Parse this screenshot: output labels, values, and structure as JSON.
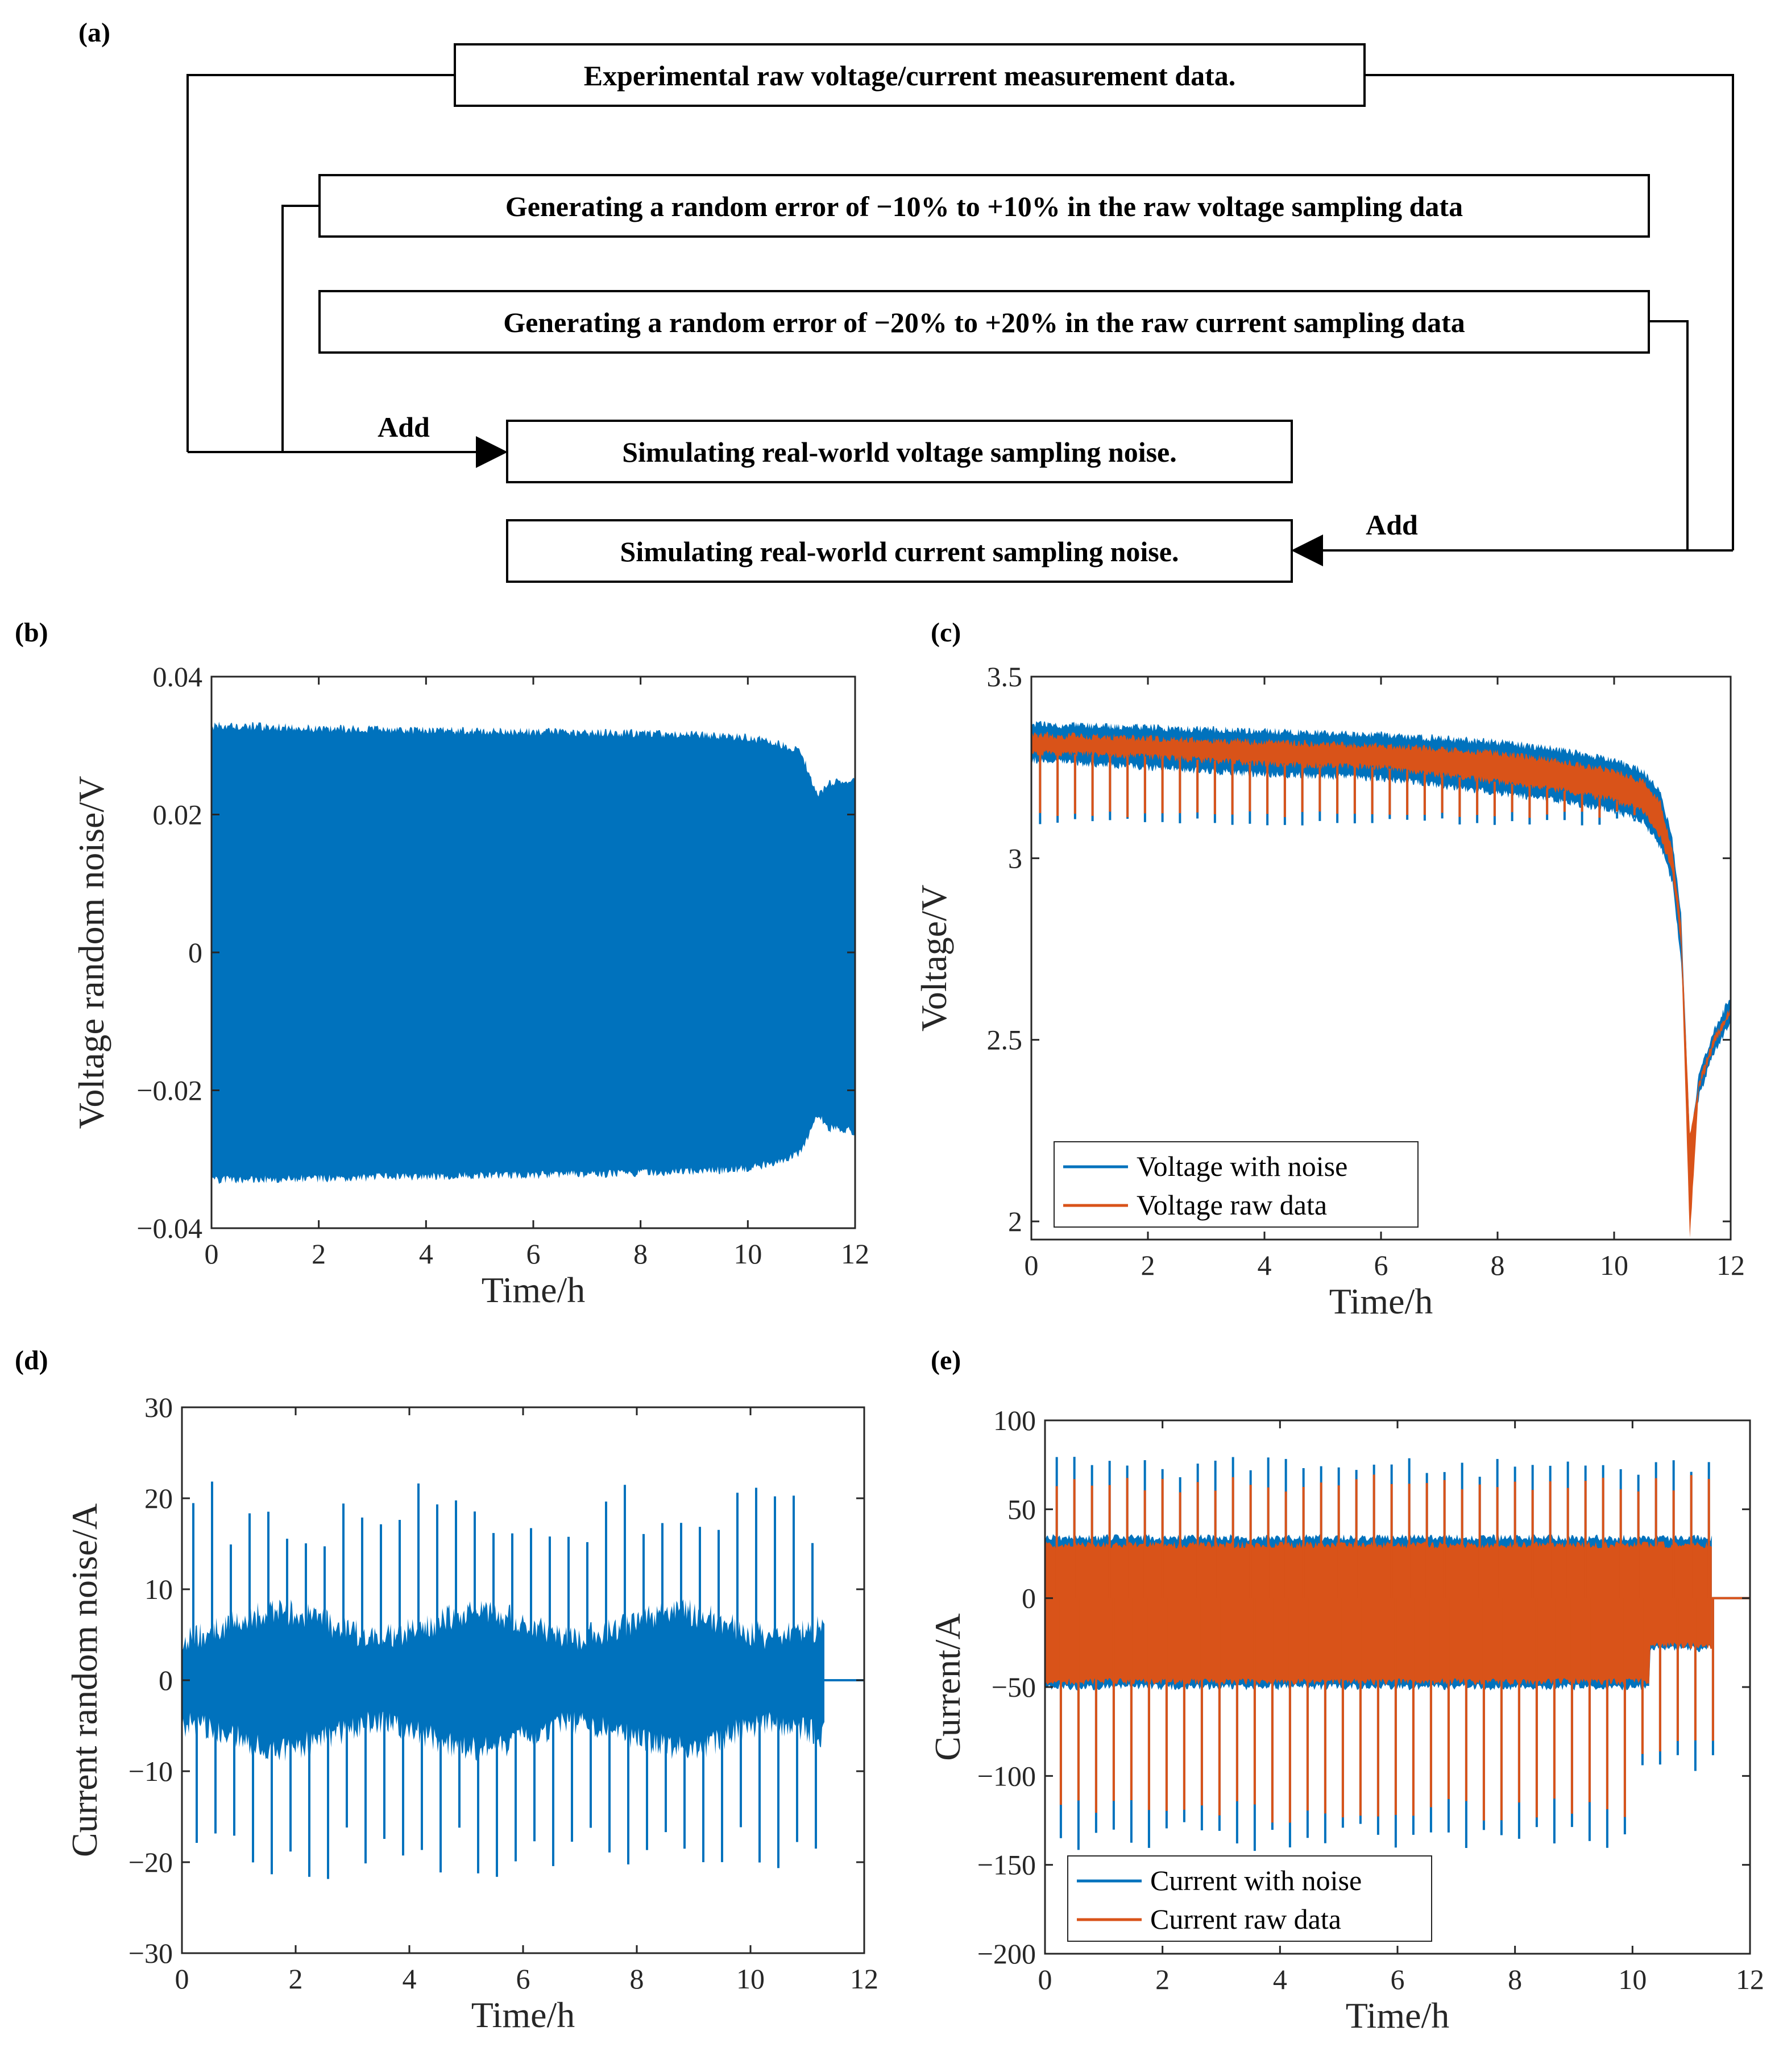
{
  "panel_labels": {
    "a": "(a)",
    "b": "(b)",
    "c": "(c)",
    "d": "(d)",
    "e": "(e)"
  },
  "flow": {
    "box_raw": "Experimental raw voltage/current measurement data.",
    "box_verr": "Generating a random error of −10% to +10% in the raw voltage sampling data",
    "box_cerr": "Generating a random error of −20% to +20% in the raw current sampling data",
    "box_vsim": "Simulating real-world voltage sampling noise.",
    "box_csim": "Simulating real-world current sampling noise.",
    "add_left": "Add",
    "add_right": "Add"
  },
  "colors": {
    "blue": "#0072BD",
    "orange": "#D95319"
  },
  "chart_data": [
    {
      "id": "b",
      "type": "line",
      "xlabel": "Time/h",
      "ylabel": "Voltage random noise/V",
      "xlim": [
        0,
        12
      ],
      "ylim": [
        -0.04,
        0.04
      ],
      "xticks": [
        0,
        2,
        4,
        6,
        8,
        10,
        12
      ],
      "yticks": [
        -0.04,
        -0.02,
        0,
        0.02,
        0.04
      ],
      "yticklabels": [
        "−0.04",
        "−0.02",
        "0",
        "0.02",
        "0.04"
      ],
      "series": [
        {
          "name": "Voltage random noise",
          "color": "#0072BD",
          "envelope_x": [
            0,
            0.05,
            2,
            4,
            6,
            8,
            9,
            10,
            10.5,
            11,
            11.3,
            11.5,
            12
          ],
          "envelope_upper": [
            0.032,
            0.033,
            0.0325,
            0.0322,
            0.032,
            0.0318,
            0.0316,
            0.0312,
            0.0305,
            0.029,
            0.0225,
            0.0245,
            0.025
          ],
          "envelope_lower": [
            -0.033,
            -0.033,
            -0.0328,
            -0.0325,
            -0.0323,
            -0.032,
            -0.0318,
            -0.0314,
            -0.0305,
            -0.029,
            -0.0235,
            -0.0255,
            -0.026
          ]
        }
      ]
    },
    {
      "id": "c",
      "type": "line",
      "xlabel": "Time/h",
      "ylabel": "Voltage/V",
      "xlim": [
        0,
        12
      ],
      "ylim": [
        1.95,
        3.5
      ],
      "xticks": [
        0,
        2,
        4,
        6,
        8,
        10,
        12
      ],
      "yticks": [
        2,
        2.5,
        3,
        3.5
      ],
      "yticklabels": [
        "2",
        "2.5",
        "3",
        "3.5"
      ],
      "legend": {
        "position": "bottom-left",
        "entries": [
          "Voltage with noise",
          "Voltage raw data"
        ]
      },
      "series": [
        {
          "name": "Voltage with noise",
          "color": "#0072BD",
          "x": [
            0,
            2,
            4,
            6,
            8,
            9,
            10,
            10.5,
            10.8,
            11.0,
            11.15,
            11.3,
            11.45,
            11.7,
            12
          ],
          "upper": [
            3.37,
            3.36,
            3.35,
            3.34,
            3.32,
            3.3,
            3.27,
            3.24,
            3.18,
            3.05,
            2.85,
            2.22,
            2.4,
            2.52,
            2.62
          ],
          "lower": [
            3.27,
            3.25,
            3.23,
            3.22,
            3.18,
            3.16,
            3.13,
            3.1,
            3.03,
            2.93,
            2.72,
            2.2,
            2.34,
            2.46,
            2.55
          ],
          "spike_min": 3.1
        },
        {
          "name": "Voltage raw data",
          "color": "#D95319",
          "x": [
            0,
            2,
            4,
            6,
            8,
            9,
            10,
            10.5,
            10.8,
            11.0,
            11.15,
            11.3,
            11.45,
            11.7,
            12
          ],
          "upper": [
            3.34,
            3.33,
            3.32,
            3.31,
            3.29,
            3.27,
            3.24,
            3.21,
            3.15,
            3.02,
            2.82,
            2.24,
            2.38,
            2.5,
            2.59
          ],
          "lower": [
            3.29,
            3.28,
            3.26,
            3.25,
            3.21,
            3.19,
            3.16,
            3.13,
            3.06,
            2.96,
            2.76,
            1.95,
            2.36,
            2.48,
            2.57
          ],
          "spike_min": 3.13
        }
      ]
    },
    {
      "id": "d",
      "type": "line",
      "xlabel": "Time/h",
      "ylabel": "Current random noise/A",
      "xlim": [
        0,
        12
      ],
      "ylim": [
        -30,
        30
      ],
      "xticks": [
        0,
        2,
        4,
        6,
        8,
        10,
        12
      ],
      "yticks": [
        -30,
        -20,
        -10,
        0,
        10,
        20,
        30
      ],
      "yticklabels": [
        "−30",
        "−20",
        "−10",
        "0",
        "10",
        "20",
        "30"
      ],
      "series": [
        {
          "name": "Current random noise",
          "color": "#0072BD",
          "band_upper": 6,
          "band_lower": -6,
          "end_x": 11.3,
          "pulse_period_h": 0.33,
          "pulse_up": 21,
          "pulse_down": -21
        }
      ]
    },
    {
      "id": "e",
      "type": "line",
      "xlabel": "Time/h",
      "ylabel": "Current/A",
      "xlim": [
        0,
        12
      ],
      "ylim": [
        -200,
        100
      ],
      "xticks": [
        0,
        2,
        4,
        6,
        8,
        10,
        12
      ],
      "yticks": [
        -200,
        -150,
        -100,
        -50,
        0,
        50,
        100
      ],
      "yticklabels": [
        "−200",
        "−150",
        "−100",
        "−50",
        "0",
        "50",
        "100"
      ],
      "legend": {
        "position": "bottom-left",
        "entries": [
          "Current with noise",
          "Current raw data"
        ]
      },
      "series": [
        {
          "name": "Current with noise",
          "color": "#0072BD",
          "band_upper": 32,
          "band_lower": -48,
          "pulse_up": 80,
          "pulse_down": -140,
          "end_x": 11.35
        },
        {
          "name": "Current raw data",
          "color": "#D95319",
          "band_upper": 28,
          "band_lower": -45,
          "pulse_up": 70,
          "pulse_down": -125,
          "end_x": 11.35
        }
      ]
    }
  ]
}
